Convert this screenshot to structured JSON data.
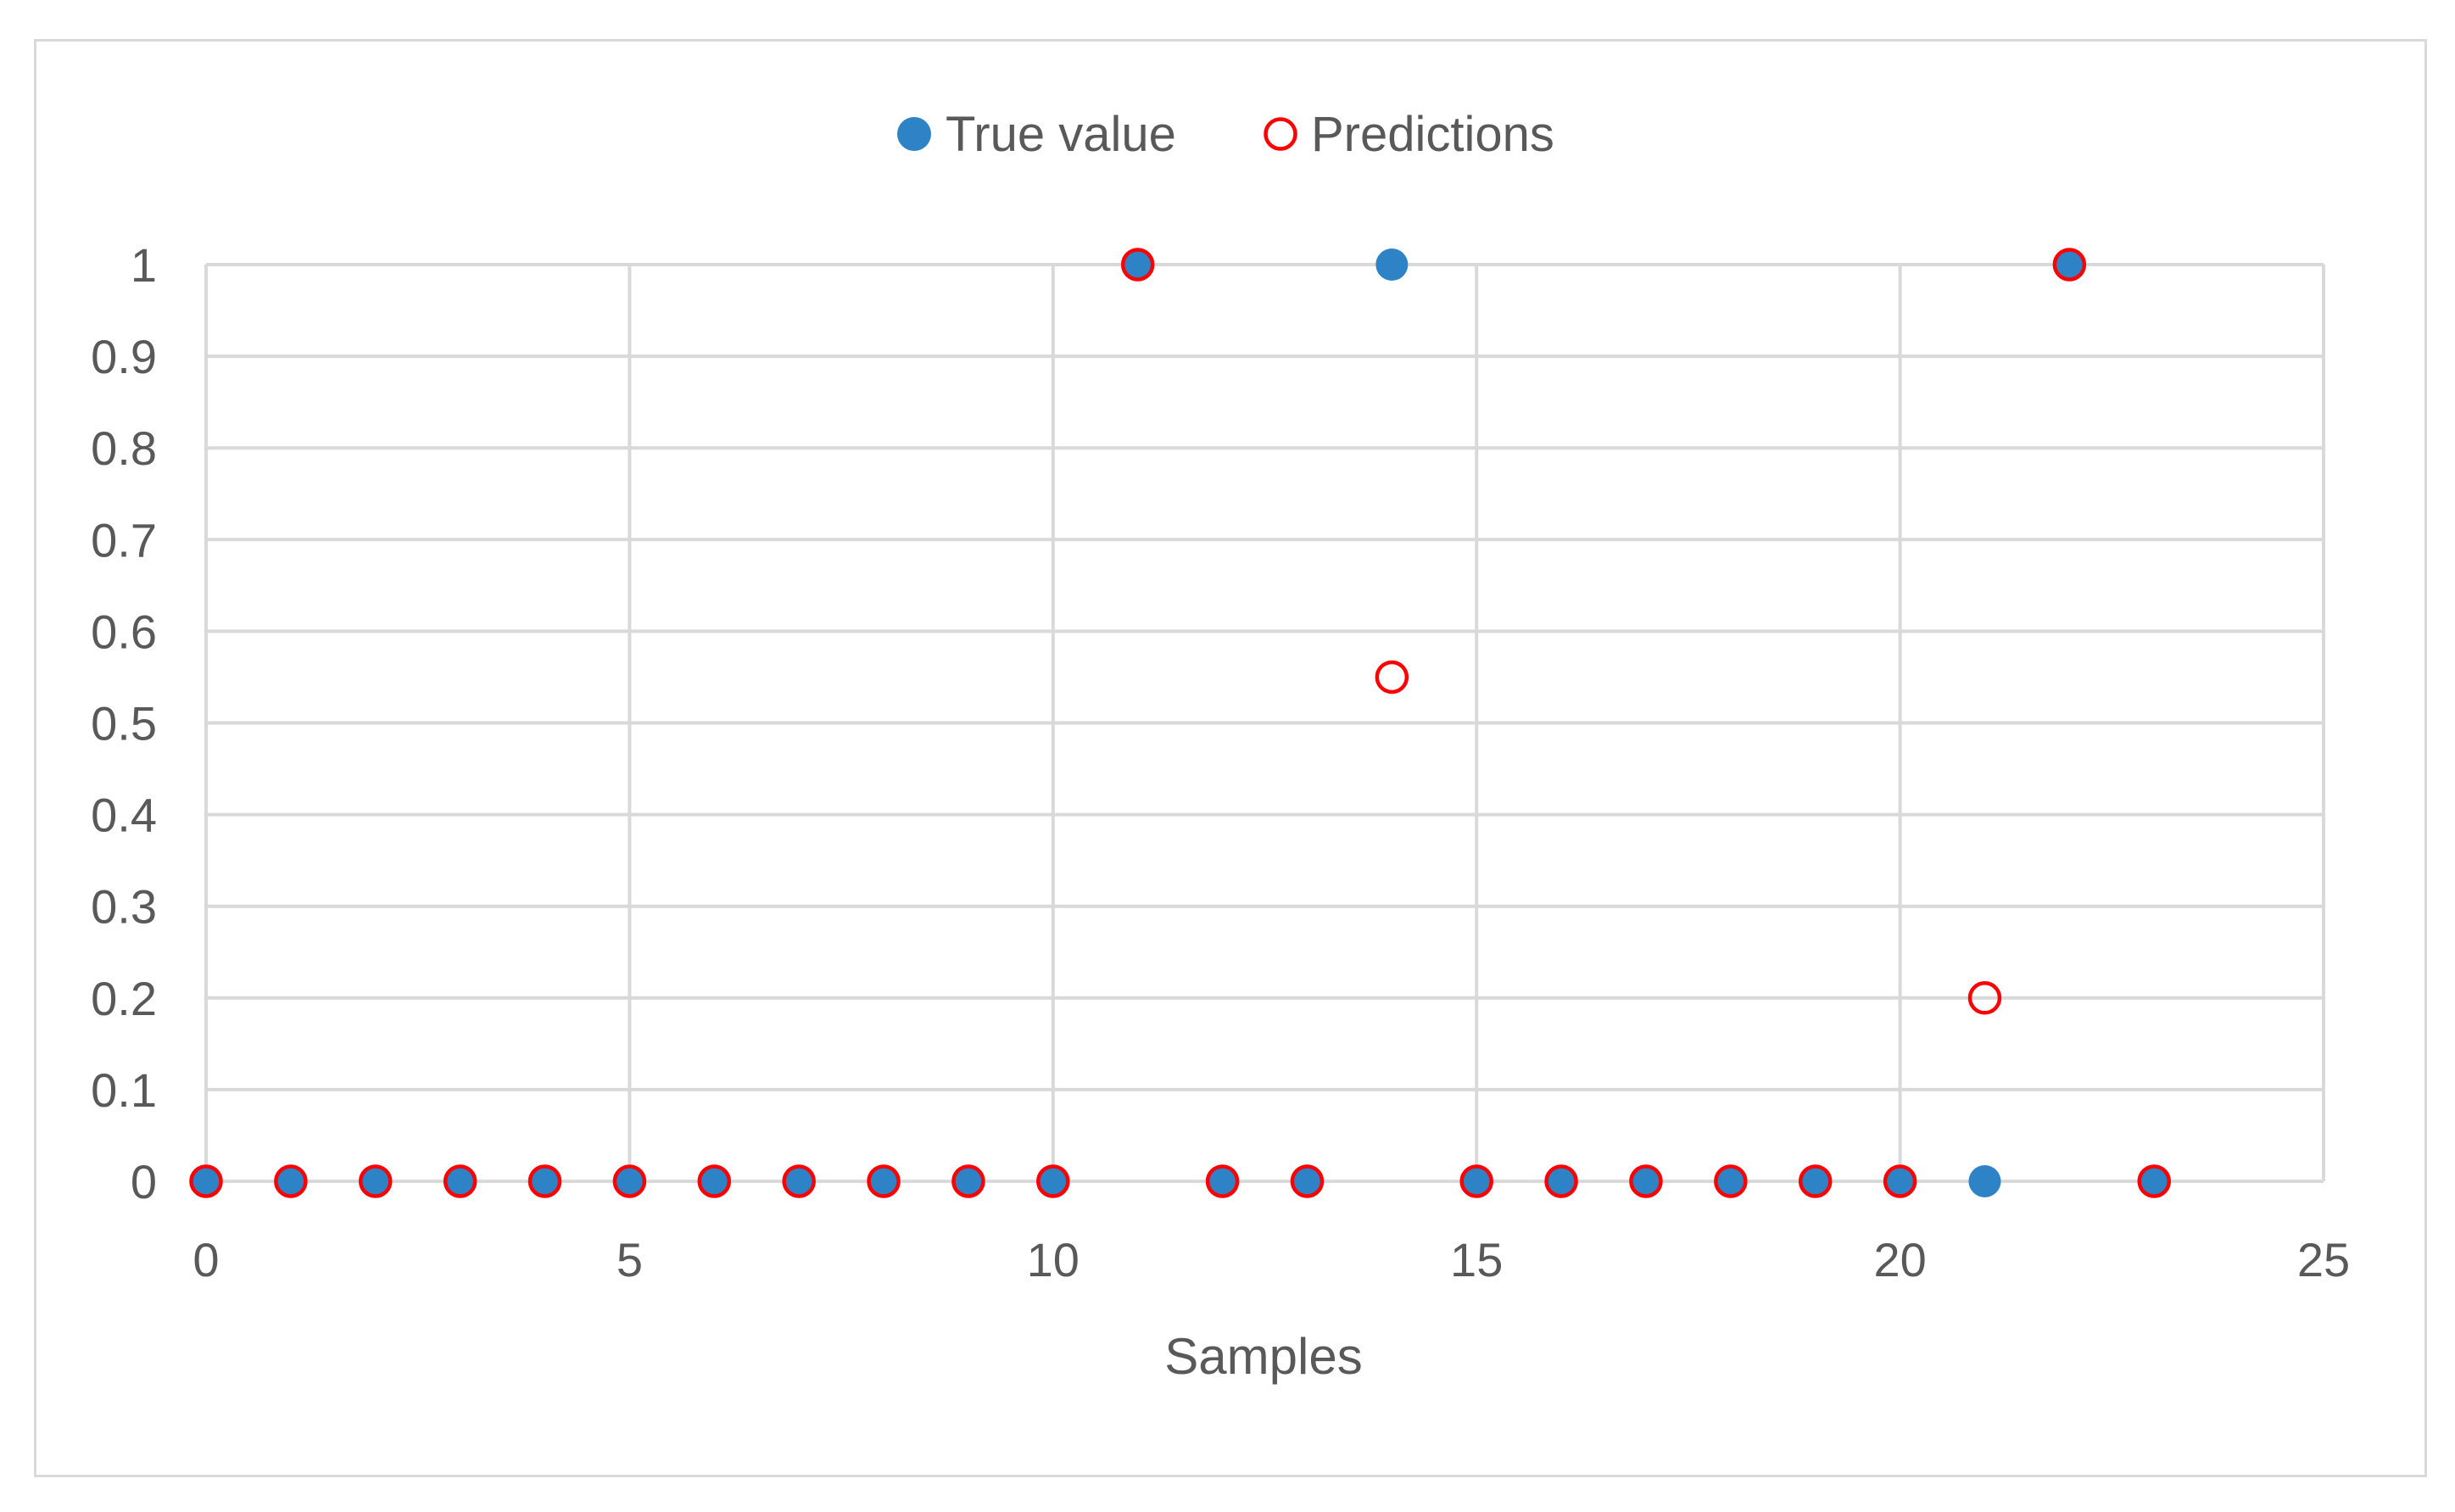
{
  "chart_data": {
    "type": "scatter",
    "title": "",
    "xlabel": "Samples",
    "ylabel": "",
    "xlim": [
      0,
      25
    ],
    "ylim": [
      0,
      1
    ],
    "x_ticks": [
      "0",
      "5",
      "10",
      "15",
      "20",
      "25"
    ],
    "y_ticks": [
      "0",
      "0.1",
      "0.2",
      "0.3",
      "0.4",
      "0.5",
      "0.6",
      "0.7",
      "0.8",
      "0.9",
      "1"
    ],
    "grid": true,
    "legend_position": "top-center",
    "series": [
      {
        "name": "True value",
        "marker": "filled-circle",
        "color": "#2e83c6",
        "x": [
          0,
          1,
          2,
          3,
          4,
          5,
          6,
          7,
          8,
          9,
          10,
          11,
          12,
          13,
          14,
          15,
          16,
          17,
          18,
          19,
          20,
          21,
          22,
          23
        ],
        "y": [
          0,
          0,
          0,
          0,
          0,
          0,
          0,
          0,
          0,
          0,
          0,
          1,
          0,
          0,
          1,
          0,
          0,
          0,
          0,
          0,
          0,
          0,
          1,
          0
        ]
      },
      {
        "name": "Predictions",
        "marker": "hollow-circle",
        "color": "#ff0000",
        "x": [
          0,
          1,
          2,
          3,
          4,
          5,
          6,
          7,
          8,
          9,
          10,
          11,
          12,
          13,
          14,
          15,
          16,
          17,
          18,
          19,
          20,
          21,
          22,
          23
        ],
        "y": [
          0,
          0,
          0,
          0,
          0,
          0,
          0,
          0,
          0,
          0,
          0,
          1,
          0,
          0,
          0.55,
          0,
          0,
          0,
          0,
          0,
          0,
          0.2,
          1,
          0
        ]
      }
    ]
  }
}
